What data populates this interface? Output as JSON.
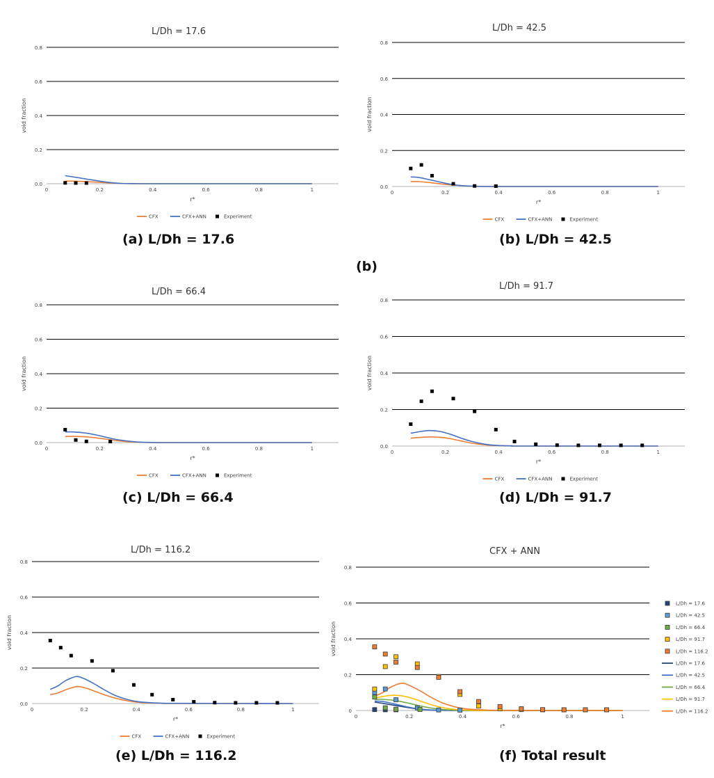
{
  "stray_label": "(b)",
  "colors": {
    "cfx": "#ED7D31",
    "cfx_ann": "#4472C4",
    "experiment": "#000000",
    "grid": "#000000"
  },
  "chart_data": [
    {
      "id": "a",
      "type": "line",
      "title": "L/Dh = 17.6",
      "caption": "(a)  L/Dh = 17.6",
      "xlabel": "r*",
      "ylabel": "void fraction",
      "xlim": [
        0,
        1.1
      ],
      "ylim": [
        0,
        0.8
      ],
      "xticks": [
        "0",
        "0.2",
        "0.4",
        "0.6",
        "0.8",
        "1"
      ],
      "yticks": [
        "0.0",
        "0.2",
        "0.4",
        "0.6",
        "0.8"
      ],
      "legend": [
        "CFX",
        "CFX+ANN",
        "Experiment"
      ],
      "series": [
        {
          "name": "CFX",
          "x": [
            0.07,
            0.1,
            0.14,
            0.2,
            0.26,
            0.3,
            0.35,
            0.4,
            0.5,
            1.0
          ],
          "values": [
            0.015,
            0.015,
            0.013,
            0.008,
            0.003,
            0.001,
            0,
            0,
            0,
            0
          ]
        },
        {
          "name": "CFX+ANN",
          "x": [
            0.07,
            0.1,
            0.14,
            0.2,
            0.24,
            0.28,
            0.32,
            0.38,
            0.5,
            1.0
          ],
          "values": [
            0.047,
            0.04,
            0.03,
            0.015,
            0.007,
            0.002,
            0.001,
            0,
            0,
            0
          ]
        },
        {
          "name": "Experiment",
          "x": [
            0.07,
            0.11,
            0.15
          ],
          "values": [
            0.005,
            0.004,
            0.004
          ]
        }
      ]
    },
    {
      "id": "b",
      "type": "line",
      "title": "L/Dh = 42.5",
      "caption": "(b) L/Dh = 42.5",
      "xlabel": "r*",
      "ylabel": "void fraction",
      "xlim": [
        0,
        1.1
      ],
      "ylim": [
        0,
        0.8
      ],
      "xticks": [
        "0",
        "0.2",
        "0.4",
        "0.6",
        "0.8",
        "1"
      ],
      "yticks": [
        "0.0",
        "0.2",
        "0.4",
        "0.6",
        "0.8"
      ],
      "legend": [
        "CFX",
        "CFX+ANN",
        "Experiment"
      ],
      "series": [
        {
          "name": "CFX",
          "x": [
            0.07,
            0.1,
            0.14,
            0.2,
            0.26,
            0.3,
            0.35,
            0.4,
            0.5,
            1.0
          ],
          "values": [
            0.028,
            0.027,
            0.022,
            0.012,
            0.005,
            0.001,
            0,
            0,
            0,
            0
          ]
        },
        {
          "name": "CFX+ANN",
          "x": [
            0.07,
            0.1,
            0.14,
            0.2,
            0.24,
            0.28,
            0.32,
            0.38,
            0.5,
            1.0
          ],
          "values": [
            0.053,
            0.05,
            0.038,
            0.018,
            0.008,
            0.003,
            0.001,
            0,
            0,
            0
          ]
        },
        {
          "name": "Experiment",
          "x": [
            0.07,
            0.11,
            0.15,
            0.23,
            0.31,
            0.39
          ],
          "values": [
            0.1,
            0.12,
            0.06,
            0.015,
            0.003,
            0.002
          ]
        }
      ]
    },
    {
      "id": "c",
      "type": "line",
      "title": "L/Dh = 66.4",
      "caption": "(c) L/Dh = 66.4",
      "xlabel": "r*",
      "ylabel": "void fraction",
      "xlim": [
        0,
        1.1
      ],
      "ylim": [
        0,
        0.8
      ],
      "xticks": [
        "0",
        "0.2",
        "0.4",
        "0.6",
        "0.8",
        "1"
      ],
      "yticks": [
        "0.0",
        "0.2",
        "0.4",
        "0.6",
        "0.8"
      ],
      "legend": [
        "CFX",
        "CFX+ANN",
        "Experiment"
      ],
      "series": [
        {
          "name": "CFX",
          "x": [
            0.07,
            0.1,
            0.15,
            0.2,
            0.25,
            0.3,
            0.35,
            0.4,
            0.5,
            1.0
          ],
          "values": [
            0.035,
            0.036,
            0.033,
            0.025,
            0.014,
            0.006,
            0.002,
            0,
            0,
            0
          ]
        },
        {
          "name": "CFX+ANN",
          "x": [
            0.07,
            0.1,
            0.15,
            0.2,
            0.25,
            0.3,
            0.35,
            0.4,
            0.5,
            1.0
          ],
          "values": [
            0.062,
            0.062,
            0.055,
            0.04,
            0.022,
            0.01,
            0.003,
            0.001,
            0,
            0
          ]
        },
        {
          "name": "Experiment",
          "x": [
            0.07,
            0.11,
            0.15,
            0.24
          ],
          "values": [
            0.075,
            0.015,
            0.007,
            0.006
          ]
        }
      ]
    },
    {
      "id": "d",
      "type": "line",
      "title": "L/Dh = 91.7",
      "caption": "(d) L/Dh = 91.7",
      "xlabel": "r*",
      "ylabel": "void fraction",
      "xlim": [
        0,
        1.1
      ],
      "ylim": [
        0,
        0.8
      ],
      "xticks": [
        "0",
        "0.2",
        "0.4",
        "0.6",
        "0.8",
        "1"
      ],
      "yticks": [
        "0.0",
        "0.2",
        "0.4",
        "0.6",
        "0.8"
      ],
      "legend": [
        "CFX",
        "CFX+ANN",
        "Experiment"
      ],
      "series": [
        {
          "name": "CFX",
          "x": [
            0.07,
            0.1,
            0.14,
            0.18,
            0.22,
            0.26,
            0.3,
            0.35,
            0.4,
            0.45,
            0.5,
            1.0
          ],
          "values": [
            0.043,
            0.047,
            0.05,
            0.048,
            0.04,
            0.028,
            0.016,
            0.007,
            0.002,
            0.001,
            0,
            0
          ]
        },
        {
          "name": "CFX+ANN",
          "x": [
            0.07,
            0.1,
            0.14,
            0.18,
            0.22,
            0.26,
            0.3,
            0.35,
            0.4,
            0.45,
            0.5,
            1.0
          ],
          "values": [
            0.07,
            0.078,
            0.085,
            0.08,
            0.064,
            0.043,
            0.025,
            0.01,
            0.003,
            0.001,
            0,
            0
          ]
        },
        {
          "name": "Experiment",
          "x": [
            0.07,
            0.11,
            0.15,
            0.23,
            0.31,
            0.39,
            0.46,
            0.54,
            0.62,
            0.7,
            0.78,
            0.86,
            0.94
          ],
          "values": [
            0.12,
            0.245,
            0.3,
            0.26,
            0.19,
            0.09,
            0.025,
            0.01,
            0.005,
            0.004,
            0.004,
            0.004,
            0.004
          ]
        }
      ]
    },
    {
      "id": "e",
      "type": "line",
      "title": "L/Dh = 116.2",
      "caption": "(e) L/Dh = 116.2",
      "xlabel": "r*",
      "ylabel": "void fraction",
      "xlim": [
        0,
        1.1
      ],
      "ylim": [
        0,
        0.8
      ],
      "xticks": [
        "0",
        "0.2",
        "0.4",
        "0.6",
        "0.8",
        "1"
      ],
      "yticks": [
        "0.0",
        "0.2",
        "0.4",
        "0.6",
        "0.8"
      ],
      "legend": [
        "CFX",
        "CFX+ANN",
        "Experiment"
      ],
      "series": [
        {
          "name": "CFX",
          "x": [
            0.07,
            0.1,
            0.13,
            0.17,
            0.2,
            0.24,
            0.28,
            0.32,
            0.36,
            0.4,
            0.45,
            0.5,
            0.55,
            1.0
          ],
          "values": [
            0.05,
            0.06,
            0.078,
            0.095,
            0.09,
            0.07,
            0.048,
            0.03,
            0.017,
            0.008,
            0.003,
            0.001,
            0,
            0
          ]
        },
        {
          "name": "CFX+ANN",
          "x": [
            0.07,
            0.1,
            0.13,
            0.17,
            0.2,
            0.24,
            0.28,
            0.32,
            0.36,
            0.4,
            0.45,
            0.5,
            0.55,
            1.0
          ],
          "values": [
            0.08,
            0.1,
            0.13,
            0.152,
            0.14,
            0.11,
            0.075,
            0.045,
            0.025,
            0.012,
            0.005,
            0.002,
            0.001,
            0
          ]
        },
        {
          "name": "Experiment",
          "x": [
            0.07,
            0.11,
            0.15,
            0.23,
            0.31,
            0.39,
            0.46,
            0.54,
            0.62,
            0.7,
            0.78,
            0.86,
            0.94
          ],
          "values": [
            0.355,
            0.315,
            0.27,
            0.24,
            0.185,
            0.105,
            0.05,
            0.022,
            0.01,
            0.005,
            0.004,
            0.004,
            0.004
          ]
        }
      ]
    },
    {
      "id": "f",
      "type": "line",
      "title": "CFX + ANN",
      "caption": "(f) Total result",
      "xlabel": "r*",
      "ylabel": "void fraction",
      "xlim": [
        0,
        1.1
      ],
      "ylim": [
        0,
        0.8
      ],
      "xticks": [
        "0",
        "0.2",
        "0.4",
        "0.6",
        "0.8",
        "1"
      ],
      "yticks": [
        "0",
        "0.2",
        "0.4",
        "0.6",
        "0.8"
      ],
      "legend_position": "right",
      "series": [
        {
          "name": "L/Dh = 17.6",
          "kind": "marker",
          "color": "#264478",
          "x": [
            0.07,
            0.11,
            0.15
          ],
          "values": [
            0.005,
            0.004,
            0.004
          ]
        },
        {
          "name": "L/Dh = 42.5",
          "kind": "marker",
          "color": "#5B9BD5",
          "x": [
            0.07,
            0.11,
            0.15,
            0.23,
            0.31,
            0.39
          ],
          "values": [
            0.1,
            0.12,
            0.06,
            0.015,
            0.003,
            0.002
          ]
        },
        {
          "name": "L/Dh = 66.4",
          "kind": "marker",
          "color": "#70AD47",
          "x": [
            0.07,
            0.11,
            0.15,
            0.24
          ],
          "values": [
            0.075,
            0.015,
            0.007,
            0.006
          ]
        },
        {
          "name": "L/Dh = 91.7",
          "kind": "marker",
          "color": "#FFC000",
          "x": [
            0.07,
            0.11,
            0.15,
            0.23,
            0.31,
            0.39,
            0.46,
            0.54,
            0.62,
            0.7,
            0.78,
            0.86,
            0.94
          ],
          "values": [
            0.12,
            0.245,
            0.3,
            0.26,
            0.19,
            0.09,
            0.025,
            0.01,
            0.005,
            0.004,
            0.004,
            0.004,
            0.004
          ]
        },
        {
          "name": "L/Dh = 116.2",
          "kind": "marker",
          "color": "#ED7D31",
          "x": [
            0.07,
            0.11,
            0.15,
            0.23,
            0.31,
            0.39,
            0.46,
            0.54,
            0.62,
            0.7,
            0.78,
            0.86,
            0.94
          ],
          "values": [
            0.355,
            0.315,
            0.27,
            0.24,
            0.185,
            0.105,
            0.05,
            0.022,
            0.01,
            0.005,
            0.004,
            0.004,
            0.004
          ]
        },
        {
          "name": "L/Dh = 17.6",
          "kind": "line",
          "color": "#264478",
          "x": [
            0.07,
            0.1,
            0.14,
            0.2,
            0.24,
            0.28,
            0.32,
            0.38,
            0.5,
            1.0
          ],
          "values": [
            0.047,
            0.04,
            0.03,
            0.015,
            0.007,
            0.002,
            0.001,
            0,
            0,
            0
          ]
        },
        {
          "name": "L/Dh = 42.5",
          "kind": "line",
          "color": "#4472C4",
          "x": [
            0.07,
            0.1,
            0.14,
            0.2,
            0.24,
            0.28,
            0.32,
            0.38,
            0.5,
            1.0
          ],
          "values": [
            0.053,
            0.05,
            0.038,
            0.018,
            0.008,
            0.003,
            0.001,
            0,
            0,
            0
          ]
        },
        {
          "name": "L/Dh = 66.4",
          "kind": "line",
          "color": "#70AD47",
          "x": [
            0.07,
            0.1,
            0.15,
            0.2,
            0.25,
            0.3,
            0.35,
            0.4,
            0.5,
            1.0
          ],
          "values": [
            0.062,
            0.062,
            0.055,
            0.04,
            0.022,
            0.01,
            0.003,
            0.001,
            0,
            0
          ]
        },
        {
          "name": "L/Dh = 91.7",
          "kind": "line",
          "color": "#FFC000",
          "x": [
            0.07,
            0.1,
            0.14,
            0.18,
            0.22,
            0.26,
            0.3,
            0.35,
            0.4,
            0.45,
            0.5,
            1.0
          ],
          "values": [
            0.07,
            0.078,
            0.085,
            0.08,
            0.064,
            0.043,
            0.025,
            0.01,
            0.003,
            0.001,
            0,
            0
          ]
        },
        {
          "name": "L/Dh = 116.2",
          "kind": "line",
          "color": "#ED7D31",
          "x": [
            0.07,
            0.1,
            0.13,
            0.17,
            0.2,
            0.24,
            0.28,
            0.32,
            0.36,
            0.4,
            0.45,
            0.5,
            0.55,
            1.0
          ],
          "values": [
            0.08,
            0.1,
            0.13,
            0.152,
            0.14,
            0.11,
            0.075,
            0.045,
            0.025,
            0.012,
            0.005,
            0.002,
            0.001,
            0
          ]
        }
      ]
    }
  ]
}
